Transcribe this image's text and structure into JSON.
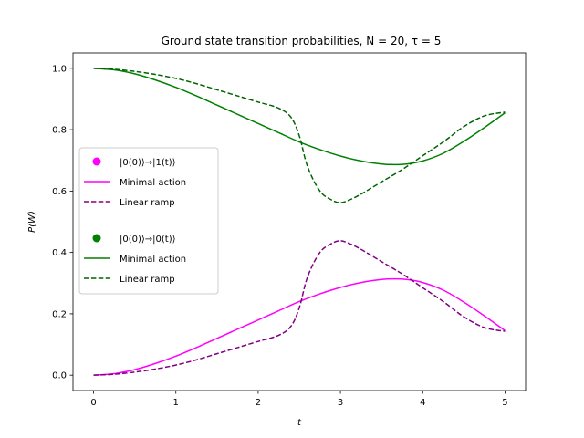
{
  "chart_data": {
    "type": "line",
    "title": "Ground state transition probabilities, N = 20, τ = 5",
    "xlabel": "t",
    "ylabel": "P(W)",
    "xlim": [
      -0.25,
      5.25
    ],
    "ylim": [
      -0.05,
      1.05
    ],
    "xticks": [
      0,
      1,
      2,
      3,
      4,
      5
    ],
    "yticks": [
      0.0,
      0.2,
      0.4,
      0.6,
      0.8,
      1.0
    ],
    "xtick_labels": [
      "0",
      "1",
      "2",
      "3",
      "4",
      "5"
    ],
    "ytick_labels": [
      "0.0",
      "0.2",
      "0.4",
      "0.6",
      "0.8",
      "1.0"
    ],
    "grid": false,
    "legend_position": "center-left",
    "legend": [
      {
        "group_label": "|0(0)⟩→|1(t)⟩",
        "group_color": "#ff00ff",
        "entries": [
          {
            "label": "Minimal action",
            "style": "solid",
            "color": "#ff00ff"
          },
          {
            "label": "Linear ramp",
            "style": "dashed",
            "color": "#800080"
          }
        ]
      },
      {
        "group_label": "|0(0)⟩→|0(t)⟩",
        "group_color": "#008000",
        "entries": [
          {
            "label": "Minimal action",
            "style": "solid",
            "color": "#008000"
          },
          {
            "label": "Linear ramp",
            "style": "dashed",
            "color": "#006400"
          }
        ]
      }
    ],
    "series": [
      {
        "group": "|0(0)⟩→|1(t)⟩",
        "name": "Minimal action",
        "style": "solid",
        "color": "#ff00ff",
        "x": [
          0,
          0.25,
          0.5,
          0.75,
          1.0,
          1.25,
          1.5,
          1.75,
          2.0,
          2.25,
          2.5,
          2.75,
          3.0,
          3.25,
          3.5,
          3.65,
          3.8,
          4.0,
          4.25,
          4.5,
          4.75,
          5.0
        ],
        "y": [
          0.0,
          0.005,
          0.018,
          0.038,
          0.062,
          0.09,
          0.12,
          0.15,
          0.18,
          0.21,
          0.24,
          0.265,
          0.286,
          0.302,
          0.312,
          0.314,
          0.312,
          0.302,
          0.277,
          0.238,
          0.193,
          0.145
        ]
      },
      {
        "group": "|0(0)⟩→|1(t)⟩",
        "name": "Linear ramp",
        "style": "dashed",
        "color": "#800080",
        "x": [
          0,
          0.25,
          0.5,
          0.75,
          1.0,
          1.25,
          1.5,
          1.75,
          2.0,
          2.25,
          2.4,
          2.5,
          2.6,
          2.75,
          2.9,
          3.0,
          3.1,
          3.25,
          3.5,
          3.75,
          4.0,
          4.25,
          4.5,
          4.75,
          5.0
        ],
        "y": [
          0.0,
          0.003,
          0.01,
          0.02,
          0.033,
          0.05,
          0.07,
          0.09,
          0.11,
          0.13,
          0.16,
          0.22,
          0.32,
          0.4,
          0.43,
          0.438,
          0.43,
          0.41,
          0.37,
          0.33,
          0.285,
          0.24,
          0.19,
          0.155,
          0.143
        ]
      },
      {
        "group": "|0(0)⟩→|0(t)⟩",
        "name": "Minimal action",
        "style": "solid",
        "color": "#008000",
        "x": [
          0,
          0.25,
          0.5,
          0.75,
          1.0,
          1.25,
          1.5,
          1.75,
          2.0,
          2.25,
          2.5,
          2.75,
          3.0,
          3.25,
          3.5,
          3.65,
          3.8,
          4.0,
          4.25,
          4.5,
          4.75,
          5.0
        ],
        "y": [
          1.0,
          0.995,
          0.982,
          0.962,
          0.938,
          0.91,
          0.88,
          0.85,
          0.82,
          0.79,
          0.76,
          0.735,
          0.714,
          0.698,
          0.688,
          0.686,
          0.688,
          0.698,
          0.723,
          0.762,
          0.807,
          0.855
        ]
      },
      {
        "group": "|0(0)⟩→|0(t)⟩",
        "name": "Linear ramp",
        "style": "dashed",
        "color": "#006400",
        "x": [
          0,
          0.25,
          0.5,
          0.75,
          1.0,
          1.25,
          1.5,
          1.75,
          2.0,
          2.25,
          2.4,
          2.5,
          2.6,
          2.75,
          2.9,
          3.0,
          3.1,
          3.25,
          3.5,
          3.75,
          4.0,
          4.25,
          4.5,
          4.75,
          5.0
        ],
        "y": [
          1.0,
          0.997,
          0.99,
          0.98,
          0.967,
          0.95,
          0.93,
          0.91,
          0.89,
          0.87,
          0.84,
          0.78,
          0.68,
          0.6,
          0.57,
          0.562,
          0.57,
          0.59,
          0.63,
          0.67,
          0.715,
          0.76,
          0.81,
          0.845,
          0.857
        ]
      }
    ]
  }
}
